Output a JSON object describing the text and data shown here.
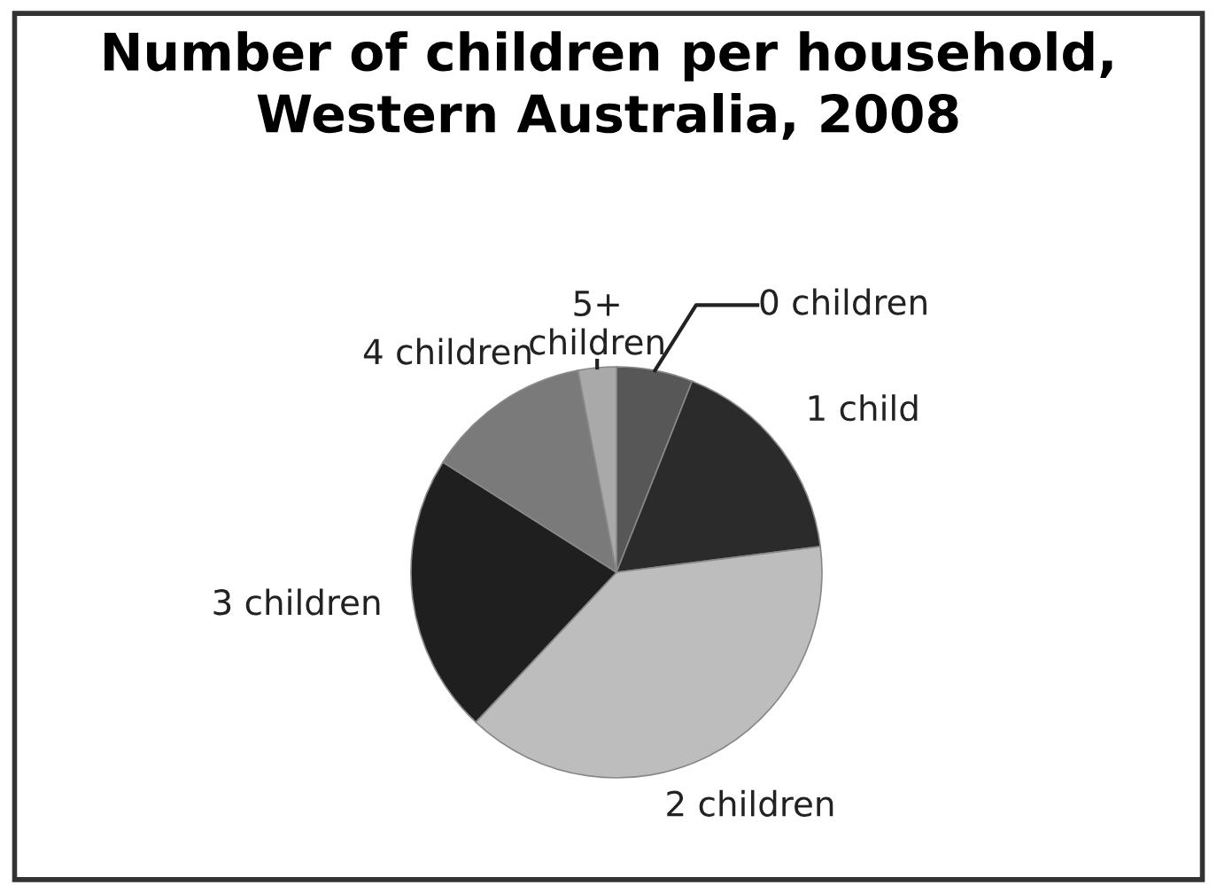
{
  "chart_data": {
    "type": "pie",
    "title": "Number of children per household,\nWestern Australia, 2008",
    "categories": [
      "0 children",
      "1 child",
      "2 children",
      "3 children",
      "4 children",
      "5+\nchildren"
    ],
    "values": [
      6,
      17,
      39,
      22,
      13,
      3
    ],
    "colors": [
      "#575757",
      "#2b2b2b",
      "#bdbdbd",
      "#1f1f1f",
      "#7a7a7a",
      "#a9a9a9"
    ]
  }
}
